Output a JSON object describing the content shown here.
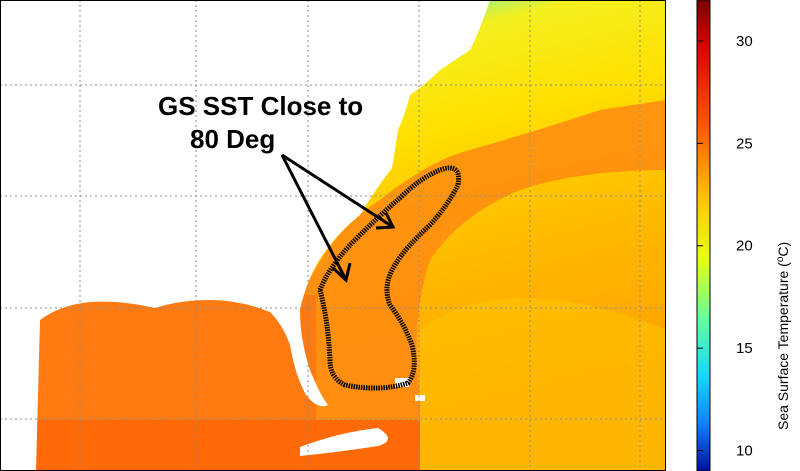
{
  "annotation": {
    "line1": "GS SST Close to",
    "line2": "80 Deg"
  },
  "colorbar": {
    "label": "Sea Surface Temperature (",
    "label_sup": "o",
    "label_end": "C)",
    "ticks": [
      "30",
      "25",
      "20",
      "15",
      "10"
    ],
    "min": 9,
    "max": 32
  },
  "colors": {
    "land": "#ffffff",
    "contour": "#000000",
    "grid": "#8c8c8c"
  }
}
